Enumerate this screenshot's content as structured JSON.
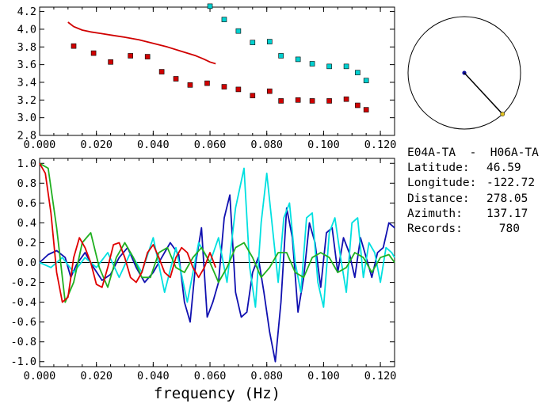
{
  "chart_data": [
    {
      "type": "scatter",
      "panel": "top",
      "ylim": [
        2.8,
        4.25
      ],
      "xlim": [
        0.0,
        0.125
      ],
      "yticks": [
        "2.8",
        "3.0",
        "3.2",
        "3.4",
        "3.6",
        "3.8",
        "4.0",
        "4.2"
      ],
      "xticks": [
        "0.000",
        "0.020",
        "0.040",
        "0.060",
        "0.080",
        "0.100",
        "0.120"
      ],
      "series": [
        {
          "color": "#d00000",
          "type": "line",
          "x": [
            0.01,
            0.012,
            0.015,
            0.018,
            0.022,
            0.026,
            0.03,
            0.035,
            0.04,
            0.045,
            0.05,
            0.055,
            0.058,
            0.06,
            0.062
          ],
          "y": [
            4.08,
            4.03,
            3.99,
            3.97,
            3.95,
            3.93,
            3.91,
            3.88,
            3.84,
            3.8,
            3.75,
            3.7,
            3.66,
            3.63,
            3.61
          ]
        },
        {
          "color": "#d00000",
          "type": "points",
          "x": [
            0.012,
            0.019,
            0.025,
            0.032,
            0.038,
            0.043,
            0.048,
            0.053,
            0.059,
            0.065,
            0.07,
            0.075,
            0.081,
            0.085,
            0.091,
            0.096,
            0.102,
            0.108,
            0.112,
            0.115
          ],
          "y": [
            3.81,
            3.73,
            3.63,
            3.7,
            3.69,
            3.52,
            3.44,
            3.37,
            3.39,
            3.35,
            3.32,
            3.25,
            3.3,
            3.19,
            3.2,
            3.19,
            3.19,
            3.21,
            3.14,
            3.09
          ]
        },
        {
          "color": "#00d0d0",
          "type": "points",
          "x": [
            0.06,
            0.065,
            0.07,
            0.075,
            0.081,
            0.085,
            0.091,
            0.096,
            0.102,
            0.108,
            0.112,
            0.115
          ],
          "y": [
            4.26,
            4.11,
            3.98,
            3.85,
            3.86,
            3.7,
            3.66,
            3.61,
            3.58,
            3.58,
            3.51,
            3.42
          ]
        }
      ]
    },
    {
      "type": "line",
      "panel": "bottom",
      "xlabel": "frequency (Hz)",
      "ylim": [
        -1.05,
        1.05
      ],
      "xlim": [
        0.0,
        0.125
      ],
      "yticks": [
        "-1.0",
        "-0.8",
        "-0.6",
        "-0.4",
        "-0.2",
        "0.0",
        "0.2",
        "0.4",
        "0.6",
        "0.8",
        "1.0"
      ],
      "xticks": [
        "0.000",
        "0.020",
        "0.040",
        "0.060",
        "0.080",
        "0.100",
        "0.120"
      ],
      "series": [
        {
          "color": "#1010b0",
          "x": [
            0.0,
            0.003,
            0.006,
            0.009,
            0.011,
            0.013,
            0.016,
            0.019,
            0.022,
            0.025,
            0.028,
            0.031,
            0.034,
            0.037,
            0.04,
            0.043,
            0.046,
            0.049,
            0.051,
            0.053,
            0.055,
            0.057,
            0.059,
            0.061,
            0.063,
            0.065,
            0.067,
            0.069,
            0.071,
            0.073,
            0.075,
            0.077,
            0.079,
            0.081,
            0.083,
            0.085,
            0.087,
            0.089,
            0.091,
            0.093,
            0.095,
            0.097,
            0.099,
            0.101,
            0.103,
            0.105,
            0.107,
            0.109,
            0.111,
            0.113,
            0.115,
            0.117,
            0.119,
            0.121,
            0.123,
            0.125
          ],
          "y": [
            0.0,
            0.08,
            0.12,
            0.05,
            -0.15,
            -0.02,
            0.1,
            -0.05,
            -0.18,
            -0.12,
            0.05,
            0.15,
            -0.05,
            -0.2,
            -0.1,
            0.05,
            0.2,
            0.08,
            -0.4,
            -0.6,
            0.0,
            0.35,
            -0.55,
            -0.4,
            -0.2,
            0.45,
            0.68,
            -0.3,
            -0.55,
            -0.5,
            -0.1,
            0.05,
            -0.3,
            -0.7,
            -1.0,
            -0.4,
            0.55,
            0.25,
            -0.5,
            -0.15,
            0.4,
            0.2,
            -0.25,
            0.3,
            0.35,
            -0.1,
            0.25,
            0.1,
            -0.15,
            0.25,
            0.05,
            -0.15,
            0.1,
            0.15,
            0.4,
            0.35
          ]
        },
        {
          "color": "#00e0e0",
          "x": [
            0.0,
            0.004,
            0.008,
            0.012,
            0.016,
            0.02,
            0.024,
            0.028,
            0.032,
            0.036,
            0.04,
            0.044,
            0.048,
            0.052,
            0.056,
            0.06,
            0.063,
            0.066,
            0.069,
            0.072,
            0.074,
            0.076,
            0.078,
            0.08,
            0.082,
            0.084,
            0.086,
            0.088,
            0.09,
            0.092,
            0.094,
            0.096,
            0.098,
            0.1,
            0.102,
            0.104,
            0.106,
            0.108,
            0.11,
            0.112,
            0.114,
            0.116,
            0.118,
            0.12,
            0.122,
            0.124,
            0.125
          ],
          "y": [
            0.0,
            -0.05,
            0.05,
            -0.1,
            0.05,
            -0.05,
            0.1,
            -0.15,
            0.1,
            -0.1,
            0.25,
            -0.3,
            0.15,
            -0.4,
            0.2,
            0.0,
            0.25,
            -0.2,
            0.55,
            0.95,
            -0.05,
            -0.45,
            0.4,
            0.9,
            0.35,
            -0.2,
            0.45,
            0.6,
            0.0,
            -0.3,
            0.45,
            0.5,
            -0.2,
            -0.45,
            0.3,
            0.45,
            0.05,
            -0.3,
            0.4,
            0.45,
            -0.15,
            0.2,
            0.1,
            -0.2,
            0.15,
            0.1,
            0.05
          ]
        },
        {
          "color": "#20b020",
          "x": [
            0.0,
            0.003,
            0.006,
            0.009,
            0.012,
            0.015,
            0.018,
            0.021,
            0.024,
            0.027,
            0.03,
            0.033,
            0.036,
            0.039,
            0.042,
            0.045,
            0.048,
            0.051,
            0.054,
            0.057,
            0.06,
            0.063,
            0.066,
            0.069,
            0.072,
            0.075,
            0.078,
            0.081,
            0.084,
            0.087,
            0.09,
            0.093,
            0.096,
            0.099,
            0.102,
            0.105,
            0.108,
            0.111,
            0.114,
            0.117,
            0.12,
            0.123,
            0.125
          ],
          "y": [
            1.0,
            0.95,
            0.35,
            -0.4,
            -0.2,
            0.2,
            0.3,
            -0.05,
            -0.25,
            0.05,
            0.2,
            0.05,
            -0.15,
            -0.15,
            0.1,
            0.15,
            -0.05,
            -0.1,
            0.05,
            0.15,
            0.0,
            -0.2,
            -0.05,
            0.15,
            0.2,
            0.05,
            -0.15,
            -0.05,
            0.1,
            0.1,
            -0.1,
            -0.15,
            0.05,
            0.1,
            0.05,
            -0.1,
            -0.05,
            0.1,
            0.05,
            -0.1,
            0.05,
            0.08,
            0.0
          ]
        },
        {
          "color": "#e00000",
          "x": [
            0.0,
            0.002,
            0.004,
            0.006,
            0.008,
            0.01,
            0.012,
            0.014,
            0.016,
            0.018,
            0.02,
            0.022,
            0.024,
            0.026,
            0.028,
            0.03,
            0.032,
            0.034,
            0.036,
            0.038,
            0.04,
            0.042,
            0.044,
            0.046,
            0.048,
            0.05,
            0.052,
            0.054,
            0.056,
            0.058,
            0.06,
            0.062
          ],
          "y": [
            1.0,
            0.9,
            0.5,
            -0.1,
            -0.4,
            -0.35,
            0.05,
            0.25,
            0.15,
            0.0,
            -0.22,
            -0.25,
            -0.05,
            0.18,
            0.2,
            0.05,
            -0.15,
            -0.2,
            -0.1,
            0.1,
            0.18,
            0.05,
            -0.1,
            -0.15,
            0.05,
            0.15,
            0.1,
            -0.05,
            -0.15,
            -0.05,
            0.1,
            -0.05
          ]
        }
      ]
    }
  ],
  "map": {
    "azimuth_deg": 137.17
  },
  "info": {
    "title": "E04A-TA  -  H06A-TA",
    "rows": [
      {
        "label": "Latitude:",
        "value": "46.59"
      },
      {
        "label": "Longitude:",
        "value": "-122.72"
      },
      {
        "label": "Distance:",
        "value": "278.05"
      },
      {
        "label": "Azimuth:",
        "value": "137.17"
      },
      {
        "label": "Records:",
        "value": "780"
      }
    ]
  }
}
